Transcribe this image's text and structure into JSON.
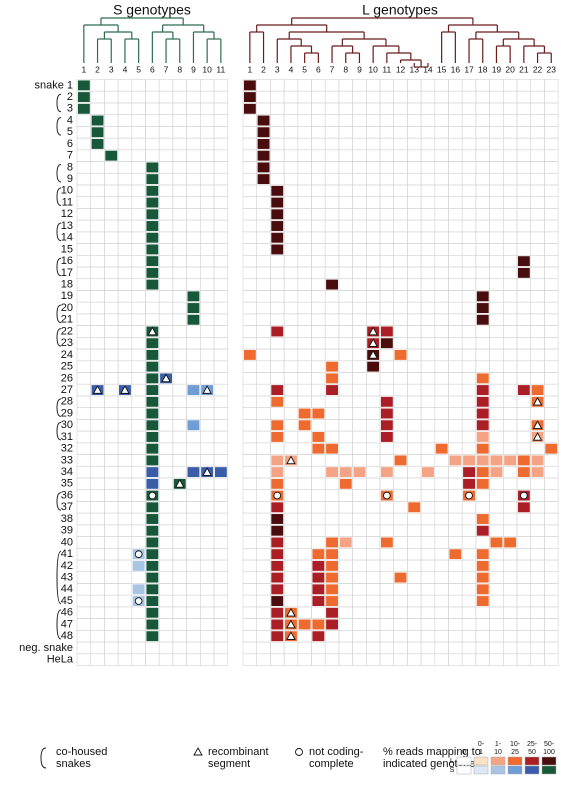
{
  "chart_data": {
    "type": "heatmap",
    "title_s": "S genotypes",
    "title_l": "L genotypes",
    "rows": [
      "snake 1",
      "2",
      "3",
      "4",
      "5",
      "6",
      "7",
      "8",
      "9",
      "10",
      "11",
      "12",
      "13",
      "14",
      "15",
      "16",
      "17",
      "18",
      "19",
      "20",
      "21",
      "22",
      "23",
      "24",
      "25",
      "26",
      "27",
      "28",
      "29",
      "30",
      "31",
      "32",
      "33",
      "34",
      "35",
      "36",
      "37",
      "38",
      "39",
      "40",
      "41",
      "42",
      "43",
      "44",
      "45",
      "46",
      "47",
      "48",
      "neg. snake",
      "HeLa"
    ],
    "s_columns": [
      1,
      2,
      3,
      4,
      5,
      6,
      7,
      8,
      9,
      10,
      11
    ],
    "l_columns": [
      1,
      2,
      3,
      4,
      5,
      6,
      7,
      8,
      9,
      10,
      11,
      12,
      13,
      14,
      15,
      16,
      17,
      18,
      19,
      20,
      21,
      22,
      23
    ],
    "s_colors": [
      "#ffffff",
      "#dfe9f5",
      "#a9c5e6",
      "#6f9dd6",
      "#3a5daa",
      "#17573a"
    ],
    "l_colors": [
      "#ffffff",
      "#fbe2c4",
      "#f4a484",
      "#ee6a2e",
      "#ab1e26",
      "#4a0d0d"
    ],
    "s_cells": [
      [
        0,
        0,
        5,
        0
      ],
      [
        1,
        0,
        5,
        0
      ],
      [
        2,
        0,
        5,
        0
      ],
      [
        3,
        1,
        5,
        0
      ],
      [
        4,
        1,
        5,
        0
      ],
      [
        5,
        1,
        5,
        0
      ],
      [
        6,
        2,
        5,
        0
      ],
      [
        7,
        5,
        5,
        0
      ],
      [
        8,
        5,
        5,
        0
      ],
      [
        9,
        5,
        5,
        0
      ],
      [
        10,
        5,
        5,
        0
      ],
      [
        11,
        5,
        5,
        0
      ],
      [
        12,
        5,
        5,
        0
      ],
      [
        13,
        5,
        5,
        0
      ],
      [
        14,
        5,
        5,
        0
      ],
      [
        15,
        5,
        5,
        0
      ],
      [
        16,
        5,
        5,
        0
      ],
      [
        17,
        5,
        5,
        0
      ],
      [
        18,
        8,
        5,
        0
      ],
      [
        19,
        8,
        5,
        0
      ],
      [
        20,
        8,
        5,
        0
      ],
      [
        21,
        5,
        5,
        1
      ],
      [
        22,
        5,
        5,
        0
      ],
      [
        23,
        5,
        5,
        0
      ],
      [
        24,
        5,
        5,
        0
      ],
      [
        25,
        5,
        5,
        0
      ],
      [
        25,
        6,
        4,
        1
      ],
      [
        26,
        1,
        4,
        1
      ],
      [
        26,
        3,
        4,
        1
      ],
      [
        26,
        5,
        5,
        0
      ],
      [
        26,
        8,
        3,
        0
      ],
      [
        26,
        9,
        3,
        1
      ],
      [
        27,
        5,
        5,
        0
      ],
      [
        28,
        5,
        5,
        0
      ],
      [
        29,
        5,
        5,
        0
      ],
      [
        29,
        8,
        3,
        0
      ],
      [
        30,
        5,
        5,
        0
      ],
      [
        31,
        5,
        5,
        0
      ],
      [
        32,
        5,
        5,
        0
      ],
      [
        33,
        5,
        4,
        0
      ],
      [
        33,
        8,
        4,
        0
      ],
      [
        33,
        9,
        4,
        1
      ],
      [
        33,
        10,
        4,
        0
      ],
      [
        34,
        5,
        4,
        0
      ],
      [
        34,
        7,
        5,
        1
      ],
      [
        35,
        5,
        5,
        2
      ],
      [
        36,
        5,
        5,
        0
      ],
      [
        37,
        5,
        5,
        0
      ],
      [
        38,
        5,
        5,
        0
      ],
      [
        39,
        5,
        5,
        0
      ],
      [
        40,
        5,
        5,
        0
      ],
      [
        40,
        4,
        2,
        2
      ],
      [
        41,
        5,
        5,
        0
      ],
      [
        41,
        4,
        2,
        0
      ],
      [
        42,
        5,
        5,
        0
      ],
      [
        43,
        5,
        5,
        0
      ],
      [
        43,
        4,
        2,
        0
      ],
      [
        44,
        5,
        5,
        0
      ],
      [
        44,
        4,
        2,
        2
      ],
      [
        45,
        5,
        5,
        0
      ],
      [
        46,
        5,
        5,
        0
      ],
      [
        47,
        5,
        5,
        0
      ]
    ],
    "l_cells": [
      [
        0,
        0,
        5,
        0
      ],
      [
        1,
        0,
        5,
        0
      ],
      [
        2,
        0,
        5,
        0
      ],
      [
        3,
        1,
        5,
        0
      ],
      [
        4,
        1,
        5,
        0
      ],
      [
        5,
        1,
        5,
        0
      ],
      [
        6,
        1,
        5,
        0
      ],
      [
        7,
        1,
        5,
        0
      ],
      [
        8,
        1,
        5,
        0
      ],
      [
        9,
        2,
        5,
        0
      ],
      [
        10,
        2,
        5,
        0
      ],
      [
        11,
        2,
        5,
        0
      ],
      [
        12,
        2,
        5,
        0
      ],
      [
        13,
        2,
        5,
        0
      ],
      [
        14,
        2,
        5,
        0
      ],
      [
        15,
        20,
        5,
        0
      ],
      [
        16,
        20,
        5,
        0
      ],
      [
        17,
        6,
        5,
        0
      ],
      [
        18,
        17,
        5,
        0
      ],
      [
        19,
        17,
        5,
        0
      ],
      [
        20,
        17,
        5,
        0
      ],
      [
        21,
        2,
        4,
        0
      ],
      [
        21,
        9,
        4,
        1
      ],
      [
        21,
        10,
        4,
        0
      ],
      [
        22,
        9,
        4,
        1
      ],
      [
        22,
        10,
        5,
        0
      ],
      [
        23,
        0,
        3,
        0
      ],
      [
        23,
        9,
        5,
        1
      ],
      [
        23,
        11,
        3,
        0
      ],
      [
        24,
        6,
        3,
        0
      ],
      [
        24,
        9,
        5,
        0
      ],
      [
        25,
        6,
        3,
        0
      ],
      [
        25,
        17,
        3,
        0
      ],
      [
        26,
        2,
        4,
        0
      ],
      [
        26,
        6,
        4,
        0
      ],
      [
        26,
        17,
        4,
        0
      ],
      [
        26,
        20,
        4,
        0
      ],
      [
        26,
        21,
        3,
        0
      ],
      [
        27,
        2,
        3,
        0
      ],
      [
        27,
        10,
        4,
        0
      ],
      [
        27,
        17,
        4,
        0
      ],
      [
        27,
        21,
        3,
        1
      ],
      [
        28,
        4,
        3,
        0
      ],
      [
        28,
        5,
        3,
        0
      ],
      [
        28,
        10,
        4,
        0
      ],
      [
        28,
        17,
        4,
        0
      ],
      [
        29,
        2,
        3,
        0
      ],
      [
        29,
        4,
        3,
        0
      ],
      [
        29,
        10,
        4,
        0
      ],
      [
        29,
        17,
        4,
        0
      ],
      [
        29,
        21,
        3,
        1
      ],
      [
        30,
        2,
        3,
        0
      ],
      [
        30,
        5,
        3,
        0
      ],
      [
        30,
        10,
        4,
        0
      ],
      [
        30,
        17,
        2,
        0
      ],
      [
        30,
        21,
        2,
        1
      ],
      [
        31,
        5,
        3,
        0
      ],
      [
        31,
        6,
        3,
        0
      ],
      [
        31,
        14,
        3,
        0
      ],
      [
        31,
        17,
        3,
        0
      ],
      [
        31,
        22,
        3,
        0
      ],
      [
        32,
        2,
        2,
        0
      ],
      [
        32,
        3,
        2,
        1
      ],
      [
        32,
        11,
        3,
        0
      ],
      [
        32,
        15,
        2,
        0
      ],
      [
        32,
        16,
        2,
        0
      ],
      [
        32,
        17,
        2,
        0
      ],
      [
        32,
        18,
        2,
        0
      ],
      [
        32,
        19,
        2,
        0
      ],
      [
        32,
        20,
        3,
        0
      ],
      [
        32,
        21,
        2,
        0
      ],
      [
        33,
        2,
        2,
        0
      ],
      [
        33,
        6,
        2,
        0
      ],
      [
        33,
        7,
        2,
        0
      ],
      [
        33,
        8,
        2,
        0
      ],
      [
        33,
        10,
        2,
        0
      ],
      [
        33,
        13,
        2,
        0
      ],
      [
        33,
        16,
        4,
        0
      ],
      [
        33,
        17,
        3,
        0
      ],
      [
        33,
        18,
        2,
        0
      ],
      [
        33,
        20,
        3,
        0
      ],
      [
        33,
        21,
        2,
        0
      ],
      [
        34,
        2,
        3,
        0
      ],
      [
        34,
        7,
        3,
        0
      ],
      [
        34,
        16,
        4,
        0
      ],
      [
        34,
        17,
        3,
        0
      ],
      [
        35,
        2,
        3,
        2
      ],
      [
        35,
        10,
        3,
        2
      ],
      [
        35,
        16,
        3,
        2
      ],
      [
        35,
        20,
        4,
        2
      ],
      [
        36,
        2,
        4,
        0
      ],
      [
        36,
        12,
        3,
        0
      ],
      [
        36,
        20,
        4,
        0
      ],
      [
        37,
        2,
        5,
        0
      ],
      [
        37,
        17,
        3,
        0
      ],
      [
        38,
        2,
        5,
        0
      ],
      [
        38,
        17,
        4,
        0
      ],
      [
        39,
        2,
        4,
        0
      ],
      [
        39,
        6,
        3,
        0
      ],
      [
        39,
        7,
        2,
        0
      ],
      [
        39,
        10,
        3,
        0
      ],
      [
        39,
        18,
        3,
        0
      ],
      [
        39,
        19,
        3,
        0
      ],
      [
        40,
        2,
        4,
        0
      ],
      [
        40,
        5,
        3,
        0
      ],
      [
        40,
        6,
        3,
        0
      ],
      [
        40,
        15,
        3,
        0
      ],
      [
        40,
        17,
        3,
        0
      ],
      [
        41,
        2,
        4,
        0
      ],
      [
        41,
        5,
        4,
        0
      ],
      [
        41,
        6,
        3,
        0
      ],
      [
        41,
        17,
        3,
        0
      ],
      [
        42,
        2,
        4,
        0
      ],
      [
        42,
        5,
        4,
        0
      ],
      [
        42,
        6,
        3,
        0
      ],
      [
        42,
        11,
        3,
        0
      ],
      [
        42,
        17,
        3,
        0
      ],
      [
        43,
        2,
        4,
        0
      ],
      [
        43,
        5,
        4,
        0
      ],
      [
        43,
        6,
        3,
        0
      ],
      [
        43,
        17,
        3,
        0
      ],
      [
        44,
        2,
        5,
        0
      ],
      [
        44,
        5,
        4,
        0
      ],
      [
        44,
        6,
        3,
        0
      ],
      [
        44,
        17,
        3,
        0
      ],
      [
        45,
        2,
        4,
        0
      ],
      [
        45,
        3,
        3,
        1
      ],
      [
        45,
        6,
        4,
        0
      ],
      [
        46,
        2,
        4,
        0
      ],
      [
        46,
        3,
        3,
        1
      ],
      [
        46,
        4,
        3,
        0
      ],
      [
        46,
        5,
        3,
        0
      ],
      [
        46,
        6,
        4,
        0
      ],
      [
        47,
        2,
        4,
        0
      ],
      [
        47,
        3,
        3,
        1
      ],
      [
        47,
        5,
        4,
        0
      ]
    ],
    "legend": {
      "cohoused": [
        "co-housed",
        "snakes"
      ],
      "recombinant": [
        "recombinant",
        "segment"
      ],
      "incomplete": [
        "not coding-",
        "complete"
      ],
      "scale_title": [
        "% reads mapping to",
        "indicated genotype"
      ],
      "bins": [
        [
          "0"
        ],
        [
          "0-",
          "1"
        ],
        [
          "1-",
          "10"
        ],
        [
          "10-",
          "25"
        ],
        [
          "25-",
          "50"
        ],
        [
          "50-",
          "100"
        ]
      ],
      "l_label": "L",
      "s_label": "S"
    }
  }
}
